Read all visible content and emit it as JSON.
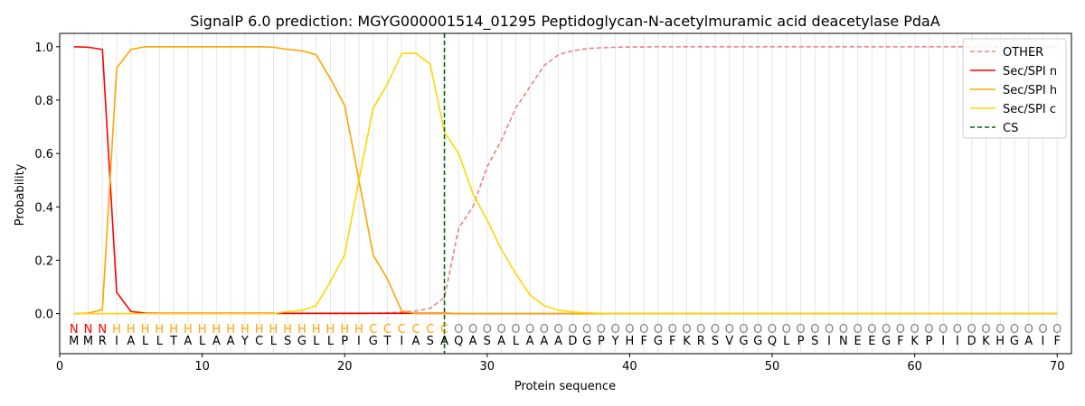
{
  "chart_data": {
    "type": "line",
    "title": "SignalP 6.0 prediction: MGYG000001514_01295 Peptidoglycan-N-acetylmuramic acid deacetylase PdaA",
    "xlabel": "Protein sequence",
    "ylabel": "Probability",
    "xlim": [
      0,
      71
    ],
    "ylim": [
      -0.15,
      1.05
    ],
    "xticks": [
      0,
      10,
      20,
      30,
      40,
      50,
      60,
      70
    ],
    "yticks": [
      0.0,
      0.2,
      0.4,
      0.6,
      0.8,
      1.0
    ],
    "ytick_labels": [
      "0.0",
      "0.2",
      "0.4",
      "0.6",
      "0.8",
      "1.0"
    ],
    "grid": "vertical lines at each residue",
    "legend_position": "top-right",
    "sequence": [
      "M",
      "M",
      "R",
      "I",
      "A",
      "L",
      "L",
      "T",
      "A",
      "L",
      "A",
      "A",
      "Y",
      "C",
      "L",
      "S",
      "G",
      "L",
      "L",
      "P",
      "I",
      "G",
      "T",
      "I",
      "A",
      "S",
      "A",
      "Q",
      "A",
      "S",
      "A",
      "L",
      "A",
      "A",
      "A",
      "D",
      "G",
      "P",
      "Y",
      "H",
      "F",
      "G",
      "F",
      "K",
      "R",
      "S",
      "V",
      "G",
      "G",
      "Q",
      "L",
      "P",
      "S",
      "I",
      "N",
      "E",
      "E",
      "G",
      "F",
      "K",
      "P",
      "I",
      "I",
      "D",
      "K",
      "H",
      "G",
      "A",
      "I",
      "F"
    ],
    "labels": [
      "N",
      "N",
      "N",
      "H",
      "H",
      "H",
      "H",
      "H",
      "H",
      "H",
      "H",
      "H",
      "H",
      "H",
      "H",
      "H",
      "H",
      "H",
      "H",
      "H",
      "H",
      "C",
      "C",
      "C",
      "C",
      "C",
      "C",
      "O",
      "O",
      "O",
      "O",
      "O",
      "O",
      "O",
      "O",
      "O",
      "O",
      "O",
      "O",
      "O",
      "O",
      "O",
      "O",
      "O",
      "O",
      "O",
      "O",
      "O",
      "O",
      "O",
      "O",
      "O",
      "O",
      "O",
      "O",
      "O",
      "O",
      "O",
      "O",
      "O",
      "O",
      "O",
      "O",
      "O",
      "O",
      "O",
      "O",
      "O",
      "O",
      "O"
    ],
    "label_colors": {
      "N": "#ff0000",
      "H": "#ffa500",
      "C": "#ffa500",
      "O": "#808080"
    },
    "cleavage_site": 27,
    "series": [
      {
        "name": "OTHER",
        "color": "#f08080",
        "dash": "dashed",
        "values": [
          0,
          0,
          0,
          0,
          0,
          0,
          0,
          0,
          0,
          0,
          0,
          0,
          0,
          0,
          0,
          0,
          0,
          0,
          0,
          0,
          0,
          0.001,
          0.003,
          0.006,
          0.01,
          0.02,
          0.06,
          0.32,
          0.4,
          0.55,
          0.65,
          0.77,
          0.85,
          0.93,
          0.97,
          0.985,
          0.993,
          0.996,
          0.998,
          0.999,
          0.999,
          1,
          1,
          1,
          1,
          1,
          1,
          1,
          1,
          1,
          1,
          1,
          1,
          1,
          1,
          1,
          1,
          1,
          1,
          1,
          1,
          1,
          1,
          1,
          1,
          1,
          1,
          1,
          1,
          1
        ]
      },
      {
        "name": "Sec/SPI n",
        "color": "#ff0000",
        "dash": "solid",
        "values": [
          1.0,
          0.998,
          0.99,
          0.08,
          0.008,
          0.002,
          0.001,
          0.001,
          0.001,
          0.001,
          0.001,
          0.001,
          0.001,
          0.001,
          0.001,
          0.001,
          0.001,
          0.001,
          0.001,
          0.001,
          0.001,
          0.001,
          0.001,
          0.001,
          0.001,
          0.001,
          0.001,
          0,
          0,
          0,
          0,
          0,
          0,
          0,
          0,
          0,
          0,
          0,
          0,
          0,
          0,
          0,
          0,
          0,
          0,
          0,
          0,
          0,
          0,
          0,
          0,
          0,
          0,
          0,
          0,
          0,
          0,
          0,
          0,
          0,
          0,
          0,
          0,
          0,
          0,
          0,
          0,
          0,
          0,
          0
        ]
      },
      {
        "name": "Sec/SPI h",
        "color": "#ffa500",
        "dash": "solid",
        "values": [
          0,
          0.002,
          0.015,
          0.92,
          0.99,
          1.0,
          1.0,
          1.0,
          1.0,
          1.0,
          1.0,
          1.0,
          1.0,
          1.0,
          0.998,
          0.99,
          0.985,
          0.97,
          0.88,
          0.78,
          0.5,
          0.22,
          0.13,
          0.01,
          0,
          0,
          0,
          0,
          0,
          0,
          0,
          0,
          0,
          0,
          0,
          0,
          0,
          0,
          0,
          0,
          0,
          0,
          0,
          0,
          0,
          0,
          0,
          0,
          0,
          0,
          0,
          0,
          0,
          0,
          0,
          0,
          0,
          0,
          0,
          0,
          0,
          0,
          0,
          0,
          0,
          0,
          0,
          0,
          0,
          0
        ]
      },
      {
        "name": "Sec/SPI c",
        "color": "#ffd700",
        "dash": "solid",
        "values": [
          0,
          0,
          0,
          0,
          0,
          0,
          0,
          0,
          0,
          0,
          0,
          0,
          0,
          0,
          0,
          0.008,
          0.012,
          0.03,
          0.12,
          0.22,
          0.5,
          0.77,
          0.86,
          0.975,
          0.975,
          0.935,
          0.68,
          0.6,
          0.45,
          0.35,
          0.24,
          0.15,
          0.07,
          0.03,
          0.013,
          0.006,
          0.003,
          0.001,
          0,
          0,
          0,
          0,
          0,
          0,
          0,
          0,
          0,
          0,
          0,
          0,
          0,
          0,
          0,
          0,
          0,
          0,
          0,
          0,
          0,
          0,
          0,
          0,
          0,
          0,
          0,
          0,
          0,
          0,
          0,
          0
        ]
      },
      {
        "name": "CS",
        "color": "#006400",
        "dash": "dashed",
        "type": "vline",
        "x": 27
      }
    ]
  }
}
